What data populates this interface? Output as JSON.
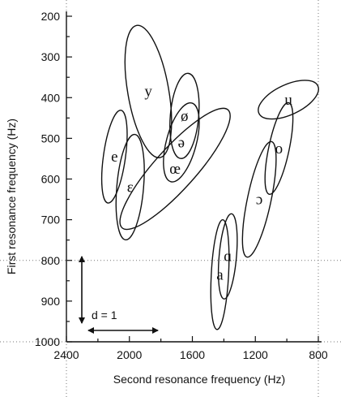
{
  "chart_data": {
    "type": "scatter",
    "title": "",
    "xlabel": "Second resonance frequency  (Hz)",
    "ylabel": "First resonance frequency  (Hz)",
    "xlim": [
      2400,
      800
    ],
    "ylim": [
      1000,
      200
    ],
    "x_reversed": true,
    "y_reversed": true,
    "x_ticks": [
      2400,
      2000,
      1600,
      1200,
      800
    ],
    "x_tick_labels": [
      "2400",
      "2000",
      "1600",
      "1200",
      "800"
    ],
    "y_ticks": [
      200,
      300,
      400,
      500,
      600,
      700,
      800,
      900,
      1000
    ],
    "y_tick_labels": [
      "200",
      "300",
      "400",
      "500",
      "600",
      "700",
      "800",
      "900",
      "1000"
    ],
    "grid": false,
    "dotted_reference_lines": {
      "x": [
        2400,
        800
      ],
      "y": [
        800,
        1000
      ]
    },
    "vowels": [
      {
        "label": "y",
        "f2": 1880,
        "f1": 385,
        "f2_half_width": 130,
        "f1_half_width": 165,
        "angle_deg": -10
      },
      {
        "label": "ø",
        "f2": 1650,
        "f1": 445,
        "f2_half_width": 90,
        "f1_half_width": 105,
        "angle_deg": 5
      },
      {
        "label": "ə",
        "f2": 1670,
        "f1": 510,
        "f2_half_width": 95,
        "f1_half_width": 100,
        "angle_deg": 15
      },
      {
        "label": "e",
        "f2": 2095,
        "f1": 545,
        "f2_half_width": 70,
        "f1_half_width": 115,
        "angle_deg": 8
      },
      {
        "label": "ɛ",
        "f2": 1995,
        "f1": 620,
        "f2_half_width": 85,
        "f1_half_width": 130,
        "angle_deg": 5
      },
      {
        "label": "œ",
        "f2": 1710,
        "f1": 575,
        "f2_half_width": 130,
        "f1_half_width": 195,
        "angle_deg": 42
      },
      {
        "label": "u",
        "f2": 990,
        "f1": 405,
        "f2_half_width": 95,
        "f1_half_width": 80,
        "angle_deg": 65
      },
      {
        "label": "o",
        "f2": 1050,
        "f1": 525,
        "f2_half_width": 65,
        "f1_half_width": 115,
        "angle_deg": 12
      },
      {
        "label": "ɔ",
        "f2": 1175,
        "f1": 650,
        "f2_half_width": 75,
        "f1_half_width": 145,
        "angle_deg": 12
      },
      {
        "label": "ɑ",
        "f2": 1375,
        "f1": 790,
        "f2_half_width": 55,
        "f1_half_width": 105,
        "angle_deg": 5
      },
      {
        "label": "a",
        "f2": 1425,
        "f1": 835,
        "f2_half_width": 55,
        "f1_half_width": 135,
        "angle_deg": 3
      }
    ],
    "scale_bar": {
      "label": "d = 1"
    }
  }
}
